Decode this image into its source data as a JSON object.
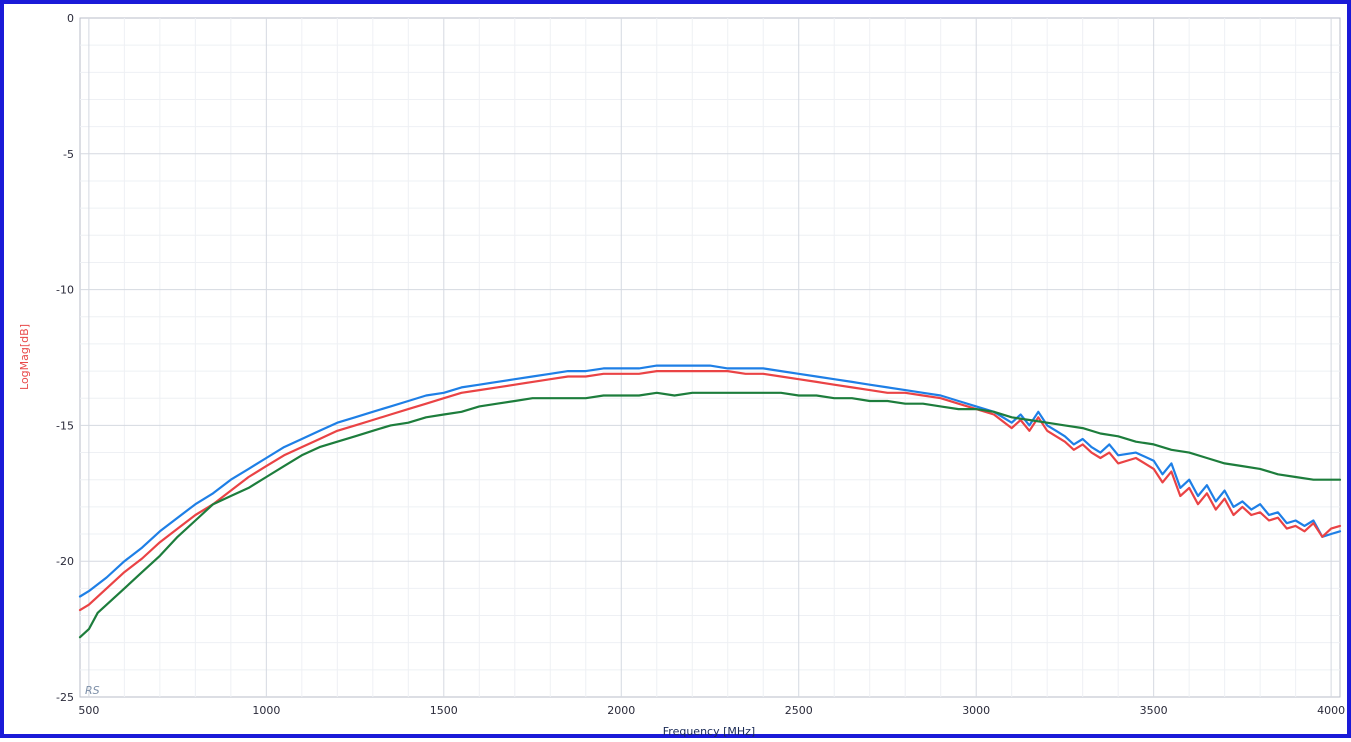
{
  "chart_data": {
    "type": "line",
    "title": "",
    "xlabel": "Frequency [MHz]",
    "ylabel": "LogMag[dB]",
    "ylabel_color": "#e8494a",
    "xlim": [
      475,
      4025
    ],
    "ylim": [
      -25,
      0
    ],
    "x_ticks": [
      "500",
      "1000",
      "1500",
      "2000",
      "2500",
      "3000",
      "3500",
      "4000"
    ],
    "y_ticks": [
      "0",
      "-5",
      "-10",
      "-15",
      "-20",
      "-25"
    ],
    "grid": true,
    "watermark": "RS",
    "series": [
      {
        "color": "#1e7fe6",
        "x": [
          475,
          500,
          550,
          600,
          650,
          700,
          750,
          800,
          850,
          900,
          950,
          1000,
          1050,
          1100,
          1150,
          1200,
          1250,
          1300,
          1350,
          1400,
          1450,
          1500,
          1550,
          1600,
          1650,
          1700,
          1750,
          1800,
          1850,
          1900,
          1950,
          2000,
          2050,
          2100,
          2150,
          2200,
          2250,
          2300,
          2350,
          2400,
          2450,
          2500,
          2550,
          2600,
          2650,
          2700,
          2750,
          2800,
          2850,
          2900,
          2950,
          3000,
          3050,
          3100,
          3125,
          3150,
          3175,
          3200,
          3225,
          3250,
          3275,
          3300,
          3325,
          3350,
          3375,
          3400,
          3450,
          3500,
          3525,
          3550,
          3575,
          3600,
          3625,
          3650,
          3675,
          3700,
          3725,
          3750,
          3775,
          3800,
          3825,
          3850,
          3875,
          3900,
          3925,
          3950,
          3975,
          4000,
          4025
        ],
        "y": [
          -21.3,
          -21.1,
          -20.6,
          -20.0,
          -19.5,
          -18.9,
          -18.4,
          -17.9,
          -17.5,
          -17.0,
          -16.6,
          -16.2,
          -15.8,
          -15.5,
          -15.2,
          -14.9,
          -14.7,
          -14.5,
          -14.3,
          -14.1,
          -13.9,
          -13.8,
          -13.6,
          -13.5,
          -13.4,
          -13.3,
          -13.2,
          -13.1,
          -13.0,
          -13.0,
          -12.9,
          -12.9,
          -12.9,
          -12.8,
          -12.8,
          -12.8,
          -12.8,
          -12.9,
          -12.9,
          -12.9,
          -13.0,
          -13.1,
          -13.2,
          -13.3,
          -13.4,
          -13.5,
          -13.6,
          -13.7,
          -13.8,
          -13.9,
          -14.1,
          -14.3,
          -14.5,
          -14.9,
          -14.6,
          -15.0,
          -14.5,
          -15.0,
          -15.2,
          -15.4,
          -15.7,
          -15.5,
          -15.8,
          -16.0,
          -15.7,
          -16.1,
          -16.0,
          -16.3,
          -16.8,
          -16.4,
          -17.3,
          -17.0,
          -17.6,
          -17.2,
          -17.8,
          -17.4,
          -18.0,
          -17.8,
          -18.1,
          -17.9,
          -18.3,
          -18.2,
          -18.6,
          -18.5,
          -18.7,
          -18.5,
          -19.1,
          -19.0,
          -18.9
        ]
      },
      {
        "color": "#ea4345",
        "x": [
          475,
          500,
          550,
          600,
          650,
          700,
          750,
          800,
          850,
          900,
          950,
          1000,
          1050,
          1100,
          1150,
          1200,
          1250,
          1300,
          1350,
          1400,
          1450,
          1500,
          1550,
          1600,
          1650,
          1700,
          1750,
          1800,
          1850,
          1900,
          1950,
          2000,
          2050,
          2100,
          2150,
          2200,
          2250,
          2300,
          2350,
          2400,
          2450,
          2500,
          2550,
          2600,
          2650,
          2700,
          2750,
          2800,
          2850,
          2900,
          2950,
          3000,
          3050,
          3100,
          3125,
          3150,
          3175,
          3200,
          3225,
          3250,
          3275,
          3300,
          3325,
          3350,
          3375,
          3400,
          3450,
          3500,
          3525,
          3550,
          3575,
          3600,
          3625,
          3650,
          3675,
          3700,
          3725,
          3750,
          3775,
          3800,
          3825,
          3850,
          3875,
          3900,
          3925,
          3950,
          3975,
          4000,
          4025
        ],
        "y": [
          -21.8,
          -21.6,
          -21.0,
          -20.4,
          -19.9,
          -19.3,
          -18.8,
          -18.3,
          -17.9,
          -17.4,
          -16.9,
          -16.5,
          -16.1,
          -15.8,
          -15.5,
          -15.2,
          -15.0,
          -14.8,
          -14.6,
          -14.4,
          -14.2,
          -14.0,
          -13.8,
          -13.7,
          -13.6,
          -13.5,
          -13.4,
          -13.3,
          -13.2,
          -13.2,
          -13.1,
          -13.1,
          -13.1,
          -13.0,
          -13.0,
          -13.0,
          -13.0,
          -13.0,
          -13.1,
          -13.1,
          -13.2,
          -13.3,
          -13.4,
          -13.5,
          -13.6,
          -13.7,
          -13.8,
          -13.8,
          -13.9,
          -14.0,
          -14.2,
          -14.4,
          -14.6,
          -15.1,
          -14.8,
          -15.2,
          -14.7,
          -15.2,
          -15.4,
          -15.6,
          -15.9,
          -15.7,
          -16.0,
          -16.2,
          -16.0,
          -16.4,
          -16.2,
          -16.6,
          -17.1,
          -16.7,
          -17.6,
          -17.3,
          -17.9,
          -17.5,
          -18.1,
          -17.7,
          -18.3,
          -18.0,
          -18.3,
          -18.2,
          -18.5,
          -18.4,
          -18.8,
          -18.7,
          -18.9,
          -18.6,
          -19.1,
          -18.8,
          -18.7
        ]
      },
      {
        "color": "#1d7d3c",
        "x": [
          475,
          500,
          525,
          550,
          600,
          650,
          700,
          750,
          800,
          850,
          900,
          950,
          1000,
          1050,
          1100,
          1150,
          1200,
          1250,
          1300,
          1350,
          1400,
          1450,
          1500,
          1550,
          1600,
          1650,
          1700,
          1750,
          1800,
          1850,
          1900,
          1950,
          2000,
          2050,
          2100,
          2150,
          2200,
          2250,
          2300,
          2350,
          2400,
          2450,
          2500,
          2550,
          2600,
          2650,
          2700,
          2750,
          2800,
          2850,
          2900,
          2950,
          3000,
          3050,
          3100,
          3150,
          3200,
          3250,
          3300,
          3350,
          3400,
          3450,
          3500,
          3550,
          3600,
          3650,
          3700,
          3750,
          3800,
          3850,
          3900,
          3950,
          4000,
          4025
        ],
        "y": [
          -22.8,
          -22.5,
          -21.9,
          -21.6,
          -21.0,
          -20.4,
          -19.8,
          -19.1,
          -18.5,
          -17.9,
          -17.6,
          -17.3,
          -16.9,
          -16.5,
          -16.1,
          -15.8,
          -15.6,
          -15.4,
          -15.2,
          -15.0,
          -14.9,
          -14.7,
          -14.6,
          -14.5,
          -14.3,
          -14.2,
          -14.1,
          -14.0,
          -14.0,
          -14.0,
          -14.0,
          -13.9,
          -13.9,
          -13.9,
          -13.8,
          -13.9,
          -13.8,
          -13.8,
          -13.8,
          -13.8,
          -13.8,
          -13.8,
          -13.9,
          -13.9,
          -14.0,
          -14.0,
          -14.1,
          -14.1,
          -14.2,
          -14.2,
          -14.3,
          -14.4,
          -14.4,
          -14.5,
          -14.7,
          -14.8,
          -14.9,
          -15.0,
          -15.1,
          -15.3,
          -15.4,
          -15.6,
          -15.7,
          -15.9,
          -16.0,
          -16.2,
          -16.4,
          -16.5,
          -16.6,
          -16.8,
          -16.9,
          -17.0,
          -17.0,
          -17.0
        ]
      }
    ]
  }
}
